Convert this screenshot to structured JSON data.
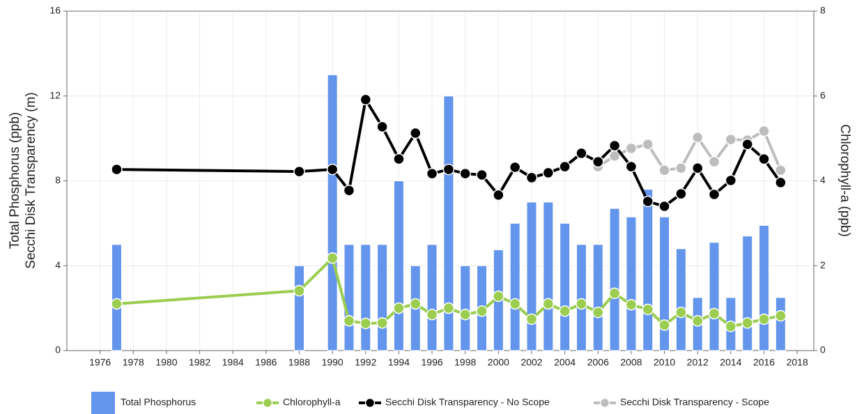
{
  "chart_data": {
    "type": "combo",
    "ylabel": [
      "Total Phosphorus (ppb)",
      "Secchi Disk Transparency (m)"
    ],
    "y2label": "Chlorophyll-a (ppb)",
    "xlim": [
      1974,
      2019
    ],
    "xticks": [
      1976,
      1978,
      1980,
      1982,
      1984,
      1986,
      1988,
      1990,
      1992,
      1994,
      1996,
      1998,
      2000,
      2002,
      2004,
      2006,
      2008,
      2010,
      2012,
      2014,
      2016,
      2018
    ],
    "ylim": [
      0,
      16
    ],
    "yticks": [
      0,
      4,
      8,
      12,
      16
    ],
    "y2lim": [
      0,
      8
    ],
    "y2ticks": [
      0,
      2,
      4,
      6,
      8
    ],
    "grid": true,
    "legend": "bottom",
    "series": [
      {
        "name": "Total Phosphorus",
        "type": "bar",
        "color": "#6495ed",
        "x": [
          1977,
          1988,
          1990,
          1991,
          1992,
          1993,
          1994,
          1995,
          1996,
          1997,
          1998,
          1999,
          2000,
          2001,
          2002,
          2003,
          2004,
          2005,
          2006,
          2007,
          2008,
          2009,
          2010,
          2011,
          2012,
          2013,
          2014,
          2015,
          2016,
          2017
        ],
        "values": [
          5,
          4,
          13,
          5,
          5,
          5,
          8,
          4,
          5,
          12,
          4,
          4,
          4.75,
          6,
          7,
          7,
          6,
          5,
          5,
          6.7,
          6.3,
          7.6,
          6.3,
          4.8,
          2.5,
          5.1,
          2.5,
          5.4,
          5.9,
          2.5
        ]
      },
      {
        "name": "Chlorophyll-a",
        "type": "line",
        "axis": "y2",
        "color": "#9acd50",
        "x": [
          1977,
          1988,
          1990,
          1991,
          1992,
          1993,
          1994,
          1995,
          1996,
          1997,
          1998,
          1999,
          2000,
          2001,
          2002,
          2003,
          2004,
          2005,
          2006,
          2007,
          2008,
          2009,
          2010,
          2011,
          2012,
          2013,
          2014,
          2015,
          2016,
          2017
        ],
        "values": [
          1.1,
          1.41,
          2.18,
          0.7,
          0.64,
          0.65,
          1.0,
          1.1,
          0.85,
          1.0,
          0.85,
          0.93,
          1.28,
          1.1,
          0.74,
          1.1,
          0.93,
          1.1,
          0.9,
          1.35,
          1.08,
          0.97,
          0.6,
          0.9,
          0.7,
          0.87,
          0.57,
          0.65,
          0.74,
          0.82
        ]
      },
      {
        "name": "Secchi Disk Transparency - No Scope",
        "type": "line",
        "color": "#000000",
        "x": [
          1977,
          1988,
          1990,
          1991,
          1992,
          1993,
          1994,
          1995,
          1996,
          1997,
          1998,
          1999,
          2000,
          2001,
          2002,
          2003,
          2004,
          2005,
          2006,
          2007,
          2008,
          2009,
          2010,
          2011,
          2012,
          2013,
          2014,
          2015,
          2016,
          2017
        ],
        "values": [
          8.54,
          8.44,
          8.54,
          7.55,
          11.83,
          10.55,
          9.03,
          10.25,
          8.34,
          8.54,
          8.34,
          8.28,
          7.33,
          8.64,
          8.15,
          8.38,
          8.67,
          9.3,
          8.9,
          9.66,
          8.67,
          7.03,
          6.8,
          7.39,
          8.6,
          7.36,
          8.02,
          9.72,
          9.03,
          7.92
        ]
      },
      {
        "name": "Secchi Disk Transparency - Scope",
        "type": "line",
        "color": "#bdbdbd",
        "x": [
          2006,
          2007,
          2008,
          2009,
          2010,
          2011,
          2012,
          2013,
          2014,
          2015,
          2016,
          2017
        ],
        "values": [
          8.67,
          9.17,
          9.53,
          9.72,
          8.5,
          8.6,
          10.05,
          8.9,
          9.95,
          9.92,
          10.35,
          8.5
        ]
      }
    ]
  }
}
